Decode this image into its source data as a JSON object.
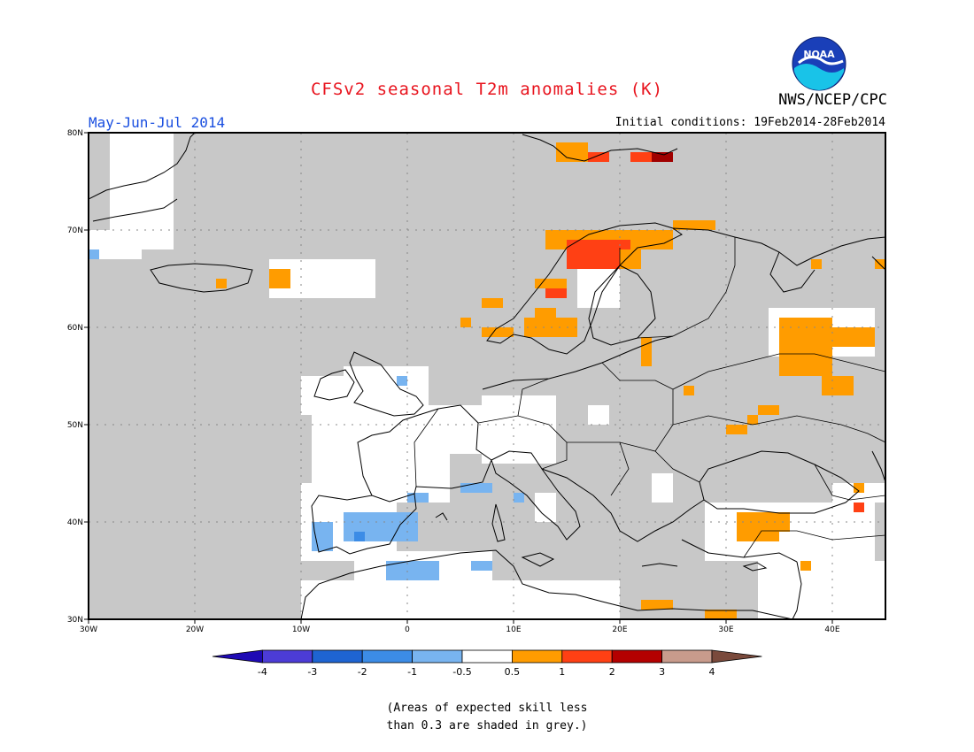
{
  "title": "CFSv2 seasonal T2m anomalies (K)",
  "agency": "NWS/NCEP/CPC",
  "logo_text": "NOAA",
  "period": "May-Jun-Jul 2014",
  "initial_conditions": "Initial conditions: 19Feb2014-28Feb2014",
  "skill_note_line1": "(Areas of expected skill less",
  "skill_note_line2": "than 0.3 are shaded in grey.)",
  "map": {
    "lon_range": [
      -30,
      45
    ],
    "lat_range": [
      30,
      80
    ],
    "lat_ticks": [
      {
        "value": 80,
        "label": "80N"
      },
      {
        "value": 70,
        "label": "70N"
      },
      {
        "value": 60,
        "label": "60N"
      },
      {
        "value": 50,
        "label": "50N"
      },
      {
        "value": 40,
        "label": "40N"
      },
      {
        "value": 30,
        "label": "30N"
      }
    ],
    "lon_ticks": [
      {
        "value": -30,
        "label": "30W"
      },
      {
        "value": -20,
        "label": "20W"
      },
      {
        "value": -10,
        "label": "10W"
      },
      {
        "value": 0,
        "label": "0"
      },
      {
        "value": 10,
        "label": "10E"
      },
      {
        "value": 20,
        "label": "20E"
      },
      {
        "value": 30,
        "label": "30E"
      },
      {
        "value": 40,
        "label": "40E"
      }
    ],
    "colors": {
      "grey": "#c8c8c8",
      "white": "#ffffff",
      "lb": "#78b4f0",
      "mb": "#3c8ce6",
      "o1": "#ff9c00",
      "o2": "#ff4014",
      "o3": "#a00000"
    },
    "white_regions": [
      {
        "lon": [
          -9,
          4
        ],
        "lat": [
          42,
          51
        ]
      },
      {
        "lon": [
          2,
          8
        ],
        "lat": [
          47,
          52
        ]
      },
      {
        "lon": [
          7,
          14
        ],
        "lat": [
          46,
          53
        ]
      },
      {
        "lon": [
          -10,
          -1
        ],
        "lat": [
          36,
          44
        ]
      },
      {
        "lon": [
          -10,
          -5
        ],
        "lat": [
          51,
          55
        ]
      },
      {
        "lon": [
          -6,
          2
        ],
        "lat": [
          50,
          56
        ]
      },
      {
        "lon": [
          -5,
          8
        ],
        "lat": [
          34,
          37
        ]
      },
      {
        "lon": [
          -10,
          20
        ],
        "lat": [
          30,
          34
        ]
      },
      {
        "lon": [
          28,
          44
        ],
        "lat": [
          36,
          42
        ]
      },
      {
        "lon": [
          33,
          45
        ],
        "lat": [
          30,
          36
        ]
      },
      {
        "lon": [
          40,
          45
        ],
        "lat": [
          42,
          44
        ]
      },
      {
        "lon": [
          34,
          44
        ],
        "lat": [
          57,
          62
        ]
      },
      {
        "lon": [
          -13,
          -3
        ],
        "lat": [
          63,
          67
        ]
      },
      {
        "lon": [
          -28,
          -22
        ],
        "lat": [
          68,
          80
        ]
      },
      {
        "lon": [
          -30,
          -25
        ],
        "lat": [
          67,
          70
        ]
      },
      {
        "lon": [
          16,
          20
        ],
        "lat": [
          62,
          66
        ]
      },
      {
        "lon": [
          17,
          19
        ],
        "lat": [
          50,
          52
        ]
      },
      {
        "lon": [
          23,
          25
        ],
        "lat": [
          42,
          45
        ]
      },
      {
        "lon": [
          12,
          14
        ],
        "lat": [
          40,
          43
        ]
      }
    ],
    "anomaly_cells": [
      {
        "lon": -6,
        "lat": 38,
        "w": 7,
        "h": 3,
        "c": "lb"
      },
      {
        "lon": -9,
        "lat": 37,
        "w": 2,
        "h": 3,
        "c": "lb"
      },
      {
        "lon": -5,
        "lat": 38,
        "w": 1,
        "h": 1,
        "c": "mb"
      },
      {
        "lon": -2,
        "lat": 34,
        "w": 5,
        "h": 2,
        "c": "lb"
      },
      {
        "lon": 6,
        "lat": 35,
        "w": 2,
        "h": 1,
        "c": "lb"
      },
      {
        "lon": 0,
        "lat": 42,
        "w": 2,
        "h": 1,
        "c": "lb"
      },
      {
        "lon": 5,
        "lat": 43,
        "w": 3,
        "h": 1,
        "c": "lb"
      },
      {
        "lon": 10,
        "lat": 42,
        "w": 1,
        "h": 1,
        "c": "lb"
      },
      {
        "lon": -1,
        "lat": 54,
        "w": 1,
        "h": 1,
        "c": "lb"
      },
      {
        "lon": -30,
        "lat": 67,
        "w": 1,
        "h": 1,
        "c": "lb"
      },
      {
        "lon": 14,
        "lat": 77,
        "w": 3,
        "h": 2,
        "c": "o1"
      },
      {
        "lon": 17,
        "lat": 77,
        "w": 2,
        "h": 1,
        "c": "o2"
      },
      {
        "lon": 21,
        "lat": 77,
        "w": 4,
        "h": 1,
        "c": "o2"
      },
      {
        "lon": 23,
        "lat": 77,
        "w": 2,
        "h": 1,
        "c": "o3"
      },
      {
        "lon": 13,
        "lat": 68,
        "w": 12,
        "h": 2,
        "c": "o1"
      },
      {
        "lon": 15,
        "lat": 66,
        "w": 5,
        "h": 3,
        "c": "o2"
      },
      {
        "lon": 20,
        "lat": 66,
        "w": 2,
        "h": 2,
        "c": "o1"
      },
      {
        "lon": 13,
        "lat": 63,
        "w": 2,
        "h": 2,
        "c": "o2"
      },
      {
        "lon": 12,
        "lat": 64,
        "w": 3,
        "h": 1,
        "c": "o1"
      },
      {
        "lon": 25,
        "lat": 70,
        "w": 4,
        "h": 1,
        "c": "o1"
      },
      {
        "lon": 7,
        "lat": 62,
        "w": 2,
        "h": 1,
        "c": "o1"
      },
      {
        "lon": 5,
        "lat": 60,
        "w": 1,
        "h": 1,
        "c": "o1"
      },
      {
        "lon": 7,
        "lat": 59,
        "w": 3,
        "h": 1,
        "c": "o1"
      },
      {
        "lon": 11,
        "lat": 59,
        "w": 5,
        "h": 2,
        "c": "o1"
      },
      {
        "lon": 12,
        "lat": 61,
        "w": 2,
        "h": 1,
        "c": "o1"
      },
      {
        "lon": 22,
        "lat": 56,
        "w": 1,
        "h": 3,
        "c": "o1"
      },
      {
        "lon": 35,
        "lat": 55,
        "w": 5,
        "h": 6,
        "c": "o1"
      },
      {
        "lon": 39,
        "lat": 53,
        "w": 3,
        "h": 2,
        "c": "o1"
      },
      {
        "lon": 40,
        "lat": 58,
        "w": 4,
        "h": 2,
        "c": "o1"
      },
      {
        "lon": 38,
        "lat": 66,
        "w": 1,
        "h": 1,
        "c": "o1"
      },
      {
        "lon": 44,
        "lat": 66,
        "w": 1,
        "h": 1,
        "c": "o1"
      },
      {
        "lon": 30,
        "lat": 49,
        "w": 2,
        "h": 1,
        "c": "o1"
      },
      {
        "lon": 32,
        "lat": 50,
        "w": 1,
        "h": 1,
        "c": "o1"
      },
      {
        "lon": 33,
        "lat": 51,
        "w": 2,
        "h": 1,
        "c": "o1"
      },
      {
        "lon": 26,
        "lat": 53,
        "w": 1,
        "h": 1,
        "c": "o1"
      },
      {
        "lon": 31,
        "lat": 38,
        "w": 4,
        "h": 3,
        "c": "o1"
      },
      {
        "lon": 35,
        "lat": 39,
        "w": 1,
        "h": 2,
        "c": "o1"
      },
      {
        "lon": 42,
        "lat": 43,
        "w": 1,
        "h": 1,
        "c": "o1"
      },
      {
        "lon": 42,
        "lat": 41,
        "w": 1,
        "h": 1,
        "c": "o2"
      },
      {
        "lon": 22,
        "lat": 31,
        "w": 3,
        "h": 1,
        "c": "o1"
      },
      {
        "lon": 28,
        "lat": 30,
        "w": 3,
        "h": 1,
        "c": "o1"
      },
      {
        "lon": -18,
        "lat": 64,
        "w": 1,
        "h": 1,
        "c": "o1"
      },
      {
        "lon": -13,
        "lat": 64,
        "w": 2,
        "h": 2,
        "c": "o1"
      },
      {
        "lon": 37,
        "lat": 35,
        "w": 1,
        "h": 1,
        "c": "o1"
      },
      {
        "lon": 20,
        "lat": 68,
        "w": 1,
        "h": 1,
        "c": "o2"
      }
    ]
  },
  "colorbar": {
    "colors": [
      "#1e0ab4",
      "#4c3cd6",
      "#1e64d2",
      "#3c8ce6",
      "#78b4f0",
      "#ffffff",
      "#ff9c00",
      "#ff4014",
      "#b40000",
      "#c89b8c",
      "#7a4a3c"
    ],
    "labels": [
      "-4",
      "-3",
      "-2",
      "-1",
      "-0.5",
      "0.5",
      "1",
      "2",
      "3",
      "4"
    ]
  }
}
